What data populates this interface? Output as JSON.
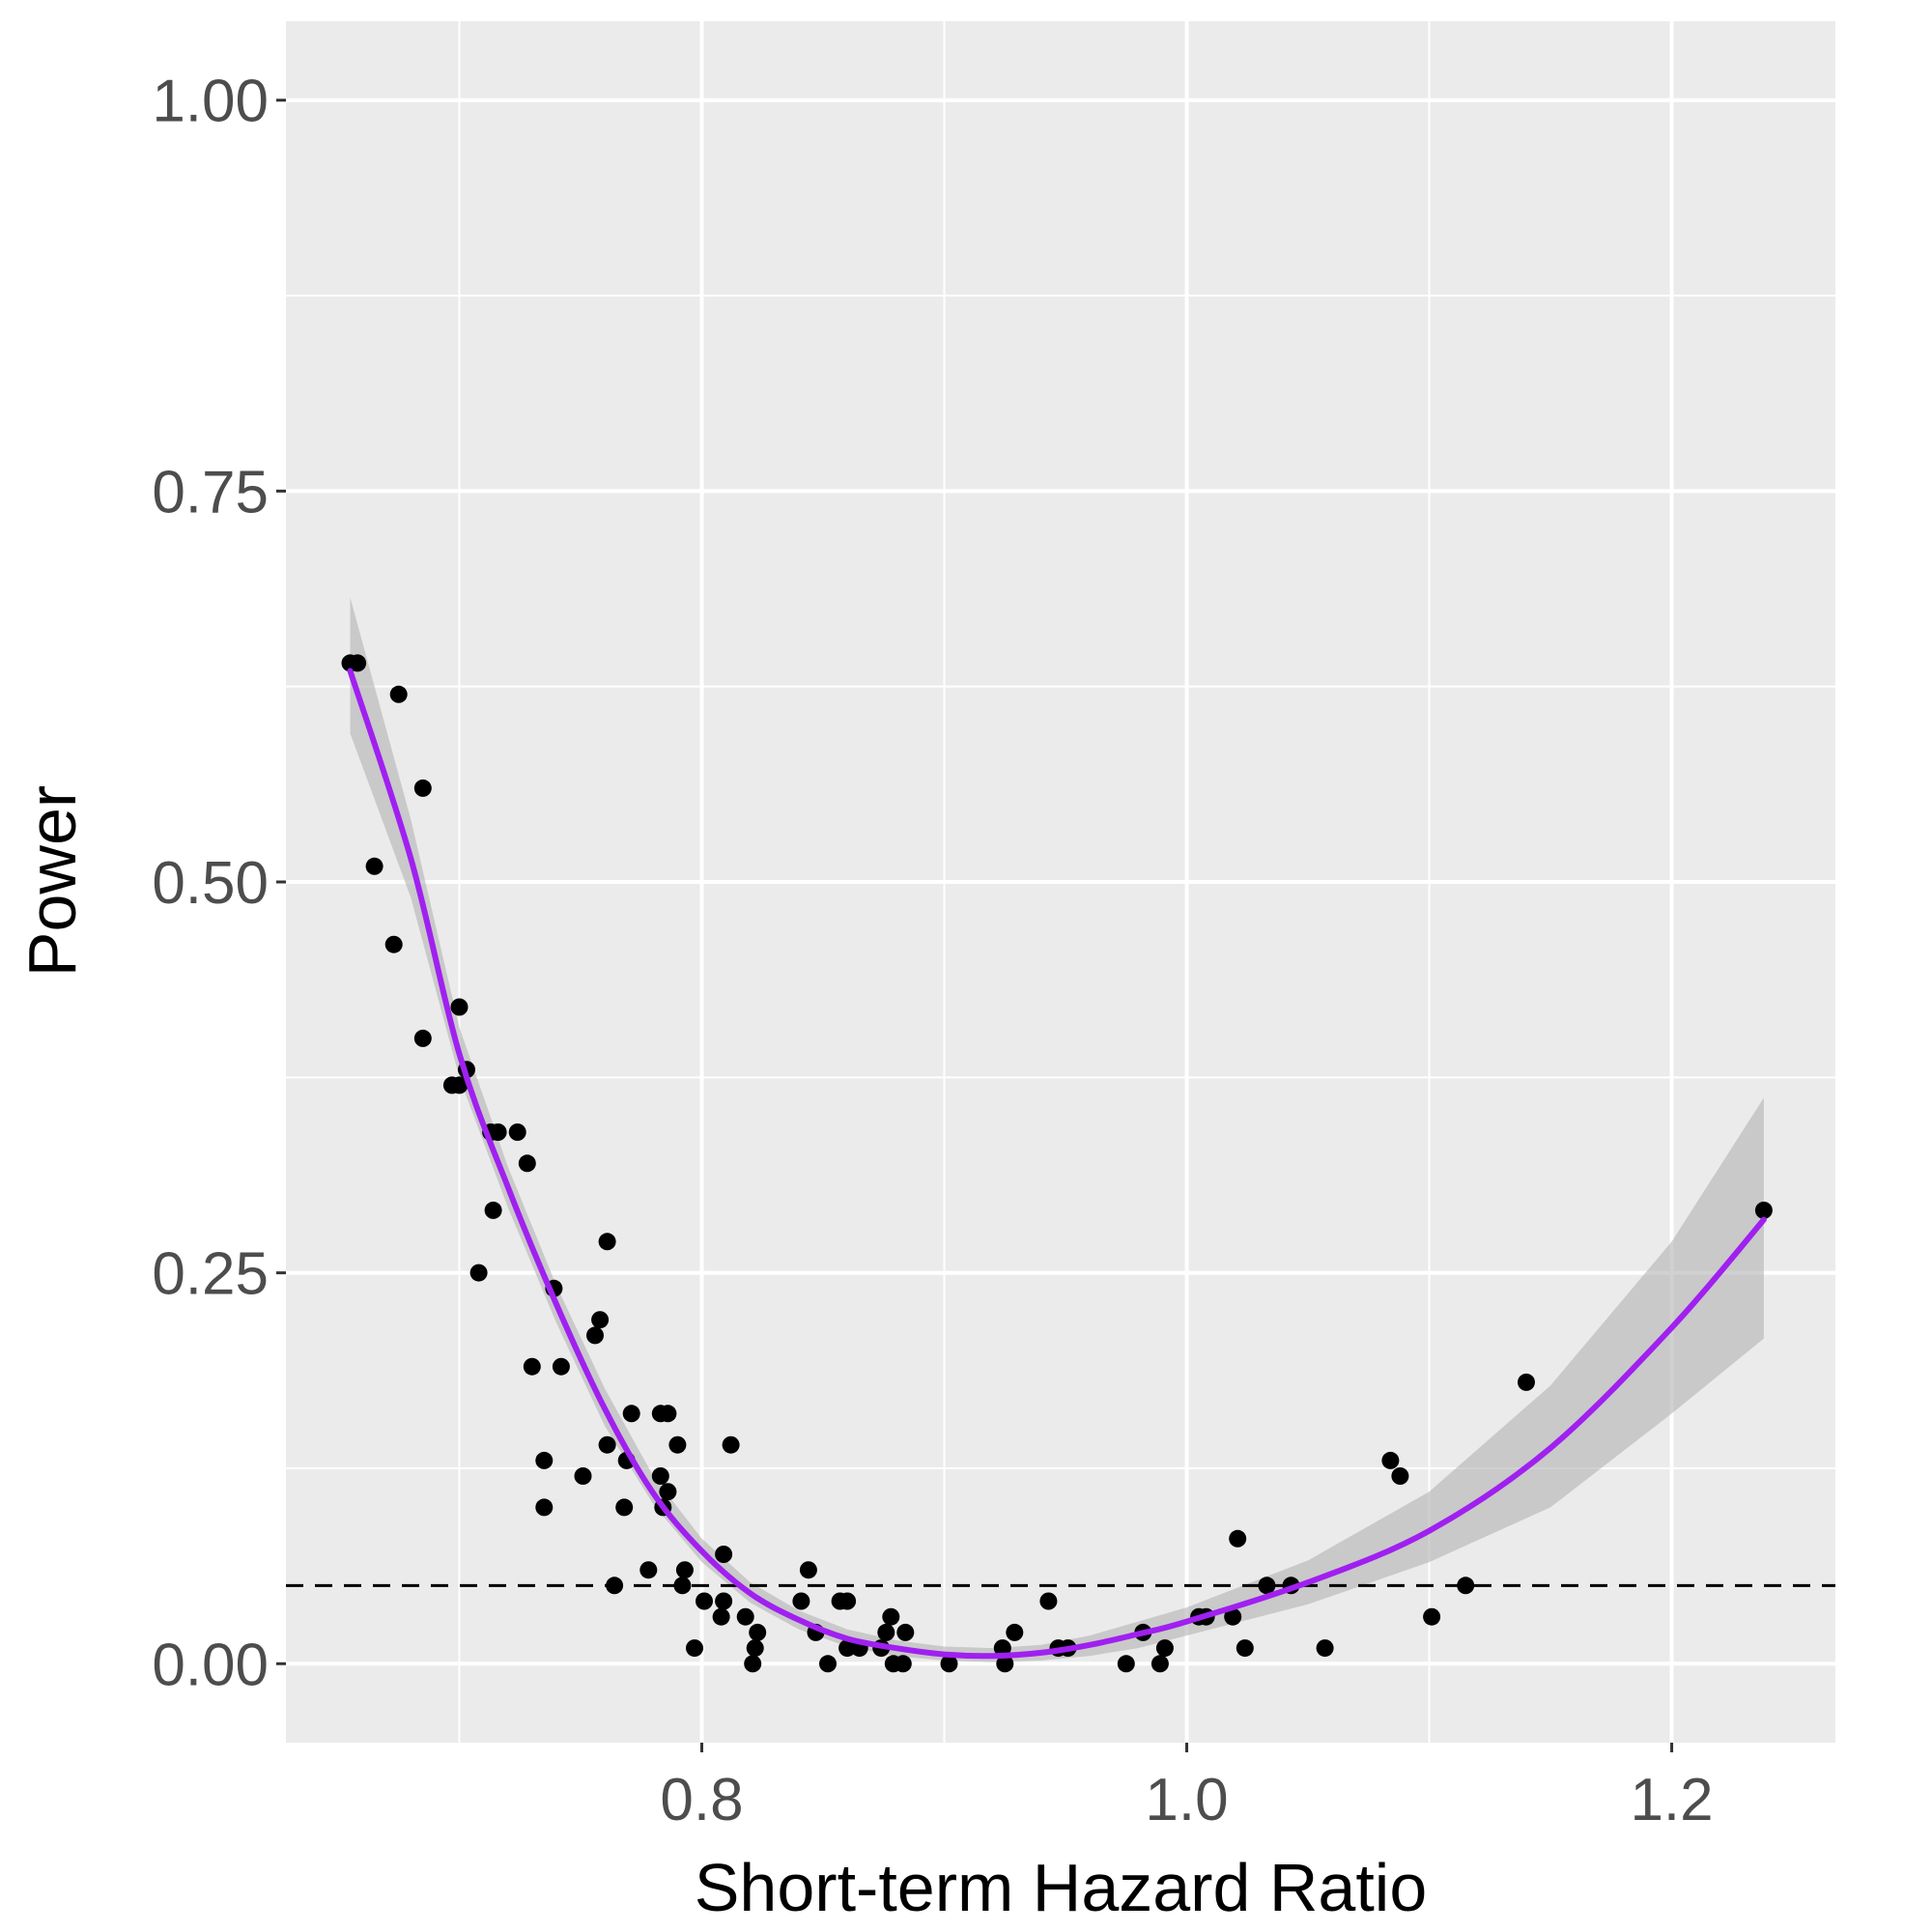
{
  "chart_data": {
    "type": "scatter",
    "title": "",
    "xlabel": "Short-term Hazard Ratio",
    "ylabel": "Power",
    "xlim": [
      0.6285,
      1.2675
    ],
    "ylim": [
      -0.0505,
      1.0505
    ],
    "x_ticks": [
      0.8,
      1.0,
      1.2
    ],
    "x_tick_labels": [
      "0.8",
      "1.0",
      "1.2"
    ],
    "y_ticks": [
      0.0,
      0.25,
      0.5,
      0.75,
      1.0
    ],
    "y_tick_labels": [
      "0.00",
      "0.25",
      "0.50",
      "0.75",
      "1.00"
    ],
    "grid": true,
    "legend": "none",
    "reference_line": {
      "y": 0.05,
      "style": "dashed",
      "color": "#000000"
    },
    "colors": {
      "panel_background": "#ebebeb",
      "grid": "#ffffff",
      "points": "#000000",
      "fit_line": "#a020f0",
      "confidence_band": "#b3b3b3",
      "tick_label": "#4d4d4d",
      "axis_title": "#000000"
    },
    "points": [
      {
        "x": 0.655,
        "y": 0.64
      },
      {
        "x": 0.658,
        "y": 0.64
      },
      {
        "x": 0.675,
        "y": 0.62
      },
      {
        "x": 0.685,
        "y": 0.56
      },
      {
        "x": 0.665,
        "y": 0.51
      },
      {
        "x": 0.673,
        "y": 0.46
      },
      {
        "x": 0.7,
        "y": 0.42
      },
      {
        "x": 0.685,
        "y": 0.4
      },
      {
        "x": 0.697,
        "y": 0.37
      },
      {
        "x": 0.7,
        "y": 0.37
      },
      {
        "x": 0.703,
        "y": 0.38
      },
      {
        "x": 0.713,
        "y": 0.34
      },
      {
        "x": 0.716,
        "y": 0.34
      },
      {
        "x": 0.724,
        "y": 0.34
      },
      {
        "x": 0.728,
        "y": 0.32
      },
      {
        "x": 0.714,
        "y": 0.29
      },
      {
        "x": 0.708,
        "y": 0.25
      },
      {
        "x": 0.761,
        "y": 0.27
      },
      {
        "x": 0.739,
        "y": 0.24
      },
      {
        "x": 0.758,
        "y": 0.22
      },
      {
        "x": 0.756,
        "y": 0.21
      },
      {
        "x": 0.73,
        "y": 0.19
      },
      {
        "x": 0.742,
        "y": 0.19
      },
      {
        "x": 0.771,
        "y": 0.16
      },
      {
        "x": 0.783,
        "y": 0.16
      },
      {
        "x": 0.786,
        "y": 0.16
      },
      {
        "x": 0.761,
        "y": 0.14
      },
      {
        "x": 0.79,
        "y": 0.14
      },
      {
        "x": 0.812,
        "y": 0.14
      },
      {
        "x": 0.735,
        "y": 0.13
      },
      {
        "x": 0.769,
        "y": 0.13
      },
      {
        "x": 0.751,
        "y": 0.12
      },
      {
        "x": 0.783,
        "y": 0.12
      },
      {
        "x": 0.786,
        "y": 0.11
      },
      {
        "x": 0.735,
        "y": 0.1
      },
      {
        "x": 0.768,
        "y": 0.1
      },
      {
        "x": 0.784,
        "y": 0.1
      },
      {
        "x": 0.809,
        "y": 0.07
      },
      {
        "x": 0.778,
        "y": 0.06
      },
      {
        "x": 0.793,
        "y": 0.06
      },
      {
        "x": 0.844,
        "y": 0.06
      },
      {
        "x": 0.764,
        "y": 0.05
      },
      {
        "x": 0.792,
        "y": 0.05
      },
      {
        "x": 0.801,
        "y": 0.04
      },
      {
        "x": 0.809,
        "y": 0.04
      },
      {
        "x": 0.841,
        "y": 0.04
      },
      {
        "x": 0.857,
        "y": 0.04
      },
      {
        "x": 0.86,
        "y": 0.04
      },
      {
        "x": 0.808,
        "y": 0.03
      },
      {
        "x": 0.818,
        "y": 0.03
      },
      {
        "x": 0.878,
        "y": 0.03
      },
      {
        "x": 0.823,
        "y": 0.02
      },
      {
        "x": 0.847,
        "y": 0.02
      },
      {
        "x": 0.876,
        "y": 0.02
      },
      {
        "x": 0.884,
        "y": 0.02
      },
      {
        "x": 0.797,
        "y": 0.01
      },
      {
        "x": 0.822,
        "y": 0.01
      },
      {
        "x": 0.86,
        "y": 0.01
      },
      {
        "x": 0.865,
        "y": 0.01
      },
      {
        "x": 0.874,
        "y": 0.01
      },
      {
        "x": 0.821,
        "y": 0.0
      },
      {
        "x": 0.852,
        "y": 0.0
      },
      {
        "x": 0.879,
        "y": 0.0
      },
      {
        "x": 0.883,
        "y": 0.0
      },
      {
        "x": 0.902,
        "y": 0.0
      },
      {
        "x": 0.924,
        "y": 0.01
      },
      {
        "x": 0.925,
        "y": 0.0
      },
      {
        "x": 0.929,
        "y": 0.02
      },
      {
        "x": 0.943,
        "y": 0.04
      },
      {
        "x": 0.947,
        "y": 0.01
      },
      {
        "x": 0.951,
        "y": 0.01
      },
      {
        "x": 0.975,
        "y": 0.0
      },
      {
        "x": 0.982,
        "y": 0.02
      },
      {
        "x": 0.989,
        "y": 0.0
      },
      {
        "x": 0.991,
        "y": 0.01
      },
      {
        "x": 1.005,
        "y": 0.03
      },
      {
        "x": 1.008,
        "y": 0.03
      },
      {
        "x": 1.019,
        "y": 0.03
      },
      {
        "x": 1.021,
        "y": 0.08
      },
      {
        "x": 1.024,
        "y": 0.01
      },
      {
        "x": 1.033,
        "y": 0.05
      },
      {
        "x": 1.043,
        "y": 0.05
      },
      {
        "x": 1.057,
        "y": 0.01
      },
      {
        "x": 1.084,
        "y": 0.13
      },
      {
        "x": 1.088,
        "y": 0.12
      },
      {
        "x": 1.101,
        "y": 0.03
      },
      {
        "x": 1.115,
        "y": 0.05
      },
      {
        "x": 1.14,
        "y": 0.18
      },
      {
        "x": 1.238,
        "y": 0.29
      }
    ],
    "fit": {
      "x": [
        0.655,
        0.68,
        0.7,
        0.72,
        0.74,
        0.76,
        0.78,
        0.8,
        0.82,
        0.84,
        0.86,
        0.88,
        0.9,
        0.92,
        0.94,
        0.96,
        0.98,
        1.0,
        1.05,
        1.1,
        1.15,
        1.2,
        1.238
      ],
      "y": [
        0.635,
        0.515,
        0.39,
        0.305,
        0.23,
        0.163,
        0.109,
        0.072,
        0.045,
        0.028,
        0.016,
        0.01,
        0.006,
        0.005,
        0.007,
        0.012,
        0.019,
        0.027,
        0.052,
        0.085,
        0.138,
        0.215,
        0.284
      ],
      "lower": [
        0.595,
        0.49,
        0.375,
        0.292,
        0.218,
        0.152,
        0.102,
        0.065,
        0.039,
        0.022,
        0.011,
        0.005,
        0.002,
        0.001,
        0.002,
        0.005,
        0.01,
        0.018,
        0.038,
        0.065,
        0.1,
        0.16,
        0.208
      ],
      "upper": [
        0.682,
        0.54,
        0.407,
        0.318,
        0.242,
        0.176,
        0.12,
        0.08,
        0.052,
        0.034,
        0.022,
        0.015,
        0.011,
        0.01,
        0.012,
        0.018,
        0.027,
        0.036,
        0.066,
        0.11,
        0.178,
        0.27,
        0.362
      ]
    }
  }
}
